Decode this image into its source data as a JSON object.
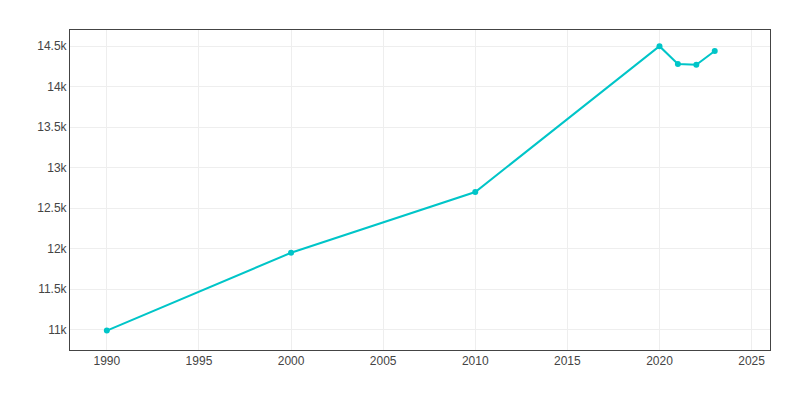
{
  "chart_data": {
    "type": "line",
    "x": [
      1990,
      2000,
      2010,
      2020,
      2021,
      2022,
      2023
    ],
    "values": [
      10990,
      11950,
      12700,
      14500,
      14280,
      14270,
      14440
    ],
    "color": "#00c5c8",
    "marker": "circle",
    "xlim": [
      1988,
      2026
    ],
    "ylim": [
      10750,
      14700
    ],
    "xticks": [
      1990,
      1995,
      2000,
      2005,
      2010,
      2015,
      2020,
      2025
    ],
    "yticks": [
      {
        "value": 11000,
        "label": "11k"
      },
      {
        "value": 11500,
        "label": "11.5k"
      },
      {
        "value": 12000,
        "label": "12k"
      },
      {
        "value": 12500,
        "label": "12.5k"
      },
      {
        "value": 13000,
        "label": "13k"
      },
      {
        "value": 13500,
        "label": "13.5k"
      },
      {
        "value": 14000,
        "label": "14k"
      },
      {
        "value": 14500,
        "label": "14.5k"
      }
    ],
    "grid": true
  }
}
